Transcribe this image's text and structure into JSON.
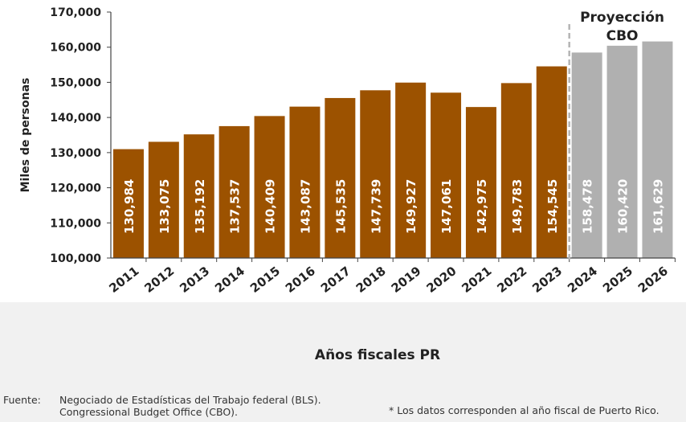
{
  "chart_data": {
    "type": "bar",
    "categories": [
      "2011",
      "2012",
      "2013",
      "2014",
      "2015",
      "2016",
      "2017",
      "2018",
      "2019",
      "2020",
      "2021",
      "2022",
      "2023",
      "2024",
      "2025",
      "2026"
    ],
    "values": [
      130984,
      133075,
      135192,
      137537,
      140409,
      143087,
      145535,
      147739,
      149927,
      147061,
      142975,
      149783,
      154545,
      158478,
      160420,
      161629
    ],
    "data_labels": [
      "130,984",
      "133,075",
      "135,192",
      "137,537",
      "140,409",
      "143,087",
      "145,535",
      "147,739",
      "149,927",
      "147,061",
      "142,975",
      "149,783",
      "154,545",
      "158,478",
      "160,420",
      "161,629"
    ],
    "projected_from_index": 13,
    "projection_label_lines": [
      "Proyección",
      "CBO"
    ],
    "xlabel": "Años fiscales PR",
    "ylabel": "Miles de personas",
    "ylim": [
      100000,
      170000
    ],
    "yticks": [
      100000,
      110000,
      120000,
      130000,
      140000,
      150000,
      160000,
      170000
    ],
    "ytick_labels": [
      "100,000",
      "110,000",
      "120,000",
      "130,000",
      "140,000",
      "150,000",
      "160,000",
      "170,000"
    ],
    "grid": false,
    "legend": "none",
    "colors": {
      "actual": "#9c5200",
      "projected": "#b0b0b0",
      "divider": "#b5b5b5"
    }
  },
  "footer": {
    "source_label": "Fuente:",
    "source_line1": "Negociado de Estadísticas del Trabajo federal (BLS).",
    "source_line2": "Congressional Budget Office (CBO).",
    "note": "* Los datos corresponden al año fiscal de Puerto Rico."
  }
}
